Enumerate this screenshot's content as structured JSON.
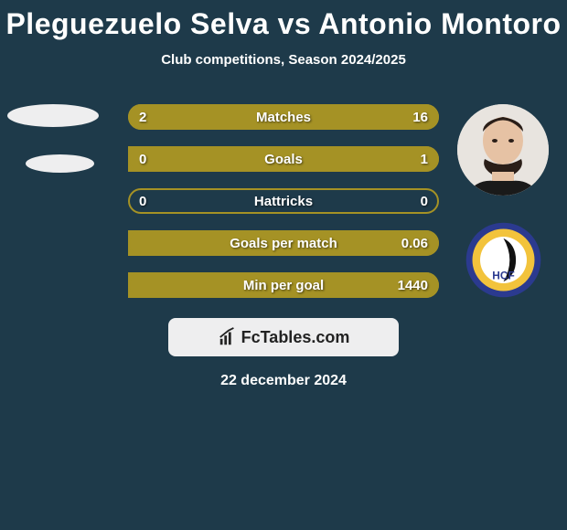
{
  "title": "Pleguezuelo Selva vs Antonio Montoro",
  "subtitle": "Club competitions, Season 2024/2025",
  "date": "22 december 2024",
  "brand": "FcTables.com",
  "colors": {
    "bg": "#1e3a4a",
    "bar_fill": "#a59225",
    "bar_border": "#a59225",
    "text": "#ffffff",
    "panel": "#eeeeef",
    "badge_outer": "#2b3a8f",
    "badge_ring": "#f2c33c",
    "badge_inner": "#ffffff"
  },
  "stats": [
    {
      "label": "Matches",
      "left_val": "2",
      "right_val": "16",
      "left_pct": 11,
      "right_pct": 89
    },
    {
      "label": "Goals",
      "left_val": "0",
      "right_val": "1",
      "left_pct": 0,
      "right_pct": 100
    },
    {
      "label": "Hattricks",
      "left_val": "0",
      "right_val": "0",
      "left_pct": 0,
      "right_pct": 0
    },
    {
      "label": "Goals per match",
      "left_val": "",
      "right_val": "0.06",
      "left_pct": 0,
      "right_pct": 100
    },
    {
      "label": "Min per goal",
      "left_val": "",
      "right_val": "1440",
      "left_pct": 0,
      "right_pct": 100
    }
  ]
}
